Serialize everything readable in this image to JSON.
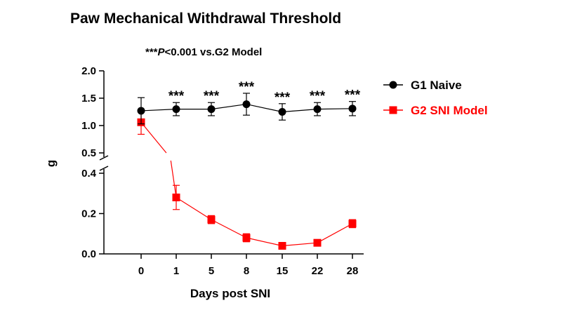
{
  "chart_data": {
    "type": "line",
    "title": "Paw Mechanical Withdrawal Threshold",
    "subtitle": {
      "stars": "***",
      "p": "P",
      "rest": "<0.001 vs.G2 Model"
    },
    "xlabel": "Days post SNI",
    "ylabel": "g",
    "categories": [
      "0",
      "1",
      "5",
      "8",
      "15",
      "22",
      "28"
    ],
    "y_axis_broken": true,
    "ylim_lower": [
      0,
      0.4
    ],
    "ylim_upper": [
      0.5,
      2.0
    ],
    "yticks_lower": [
      "0.0",
      "0.2",
      "0.4"
    ],
    "yticks_upper": [
      "0.5",
      "1.0",
      "1.5",
      "2.0"
    ],
    "significance_marker": "***",
    "significance_at": [
      "1",
      "5",
      "8",
      "15",
      "22",
      "28"
    ],
    "legend_position": "right",
    "series": [
      {
        "name": "G1 Naive",
        "color": "#000000",
        "marker": "circle",
        "values": [
          1.27,
          1.3,
          1.3,
          1.39,
          1.25,
          1.3,
          1.31
        ],
        "errors": [
          0.24,
          0.12,
          0.12,
          0.2,
          0.15,
          0.12,
          0.13
        ]
      },
      {
        "name": "G2 SNI Model",
        "color": "#ff0000",
        "marker": "square",
        "values": [
          1.06,
          0.28,
          0.17,
          0.08,
          0.04,
          0.055,
          0.15
        ],
        "errors": [
          0.22,
          0.06,
          0.02,
          0.02,
          0.005,
          0.008,
          0.02
        ]
      }
    ]
  }
}
